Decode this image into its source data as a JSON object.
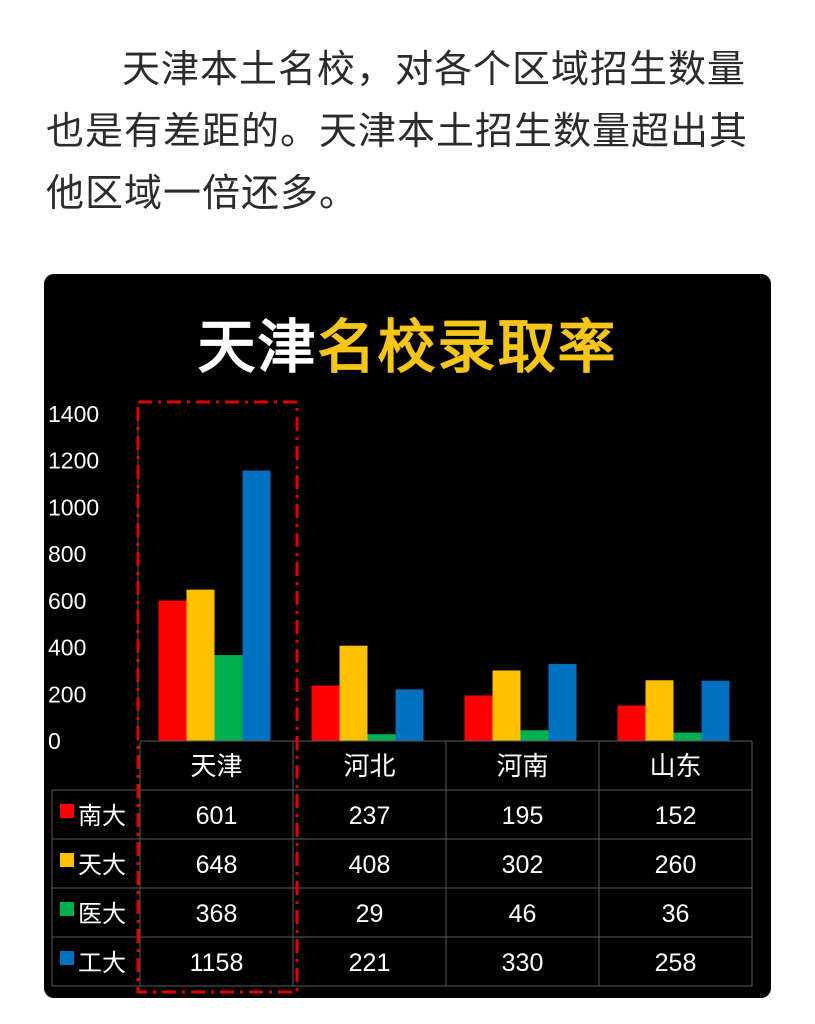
{
  "article": {
    "paragraph": "天津本土名校，对各个区域招生数量也是有差距的。天津本土招生数量超出其他区域一倍还多。"
  },
  "chart_data": {
    "type": "bar",
    "title_white": "天津",
    "title_yellow": "名校录取率",
    "categories": [
      "天津",
      "河北",
      "河南",
      "山东"
    ],
    "series": [
      {
        "name": "南大",
        "values": [
          601,
          237,
          195,
          152
        ],
        "color": "#ff0000"
      },
      {
        "name": "天大",
        "values": [
          648,
          408,
          302,
          260
        ],
        "color": "#ffc000"
      },
      {
        "name": "医大",
        "values": [
          368,
          29,
          46,
          36
        ],
        "color": "#00b050"
      },
      {
        "name": "工大",
        "values": [
          1158,
          221,
          330,
          258
        ],
        "color": "#0070c0"
      }
    ],
    "ylim": [
      0,
      1400
    ],
    "yticks": [
      0,
      200,
      400,
      600,
      800,
      1000,
      1200,
      1400
    ],
    "highlight_category": "天津",
    "highlight_color": "#e00000",
    "data_table": true
  }
}
